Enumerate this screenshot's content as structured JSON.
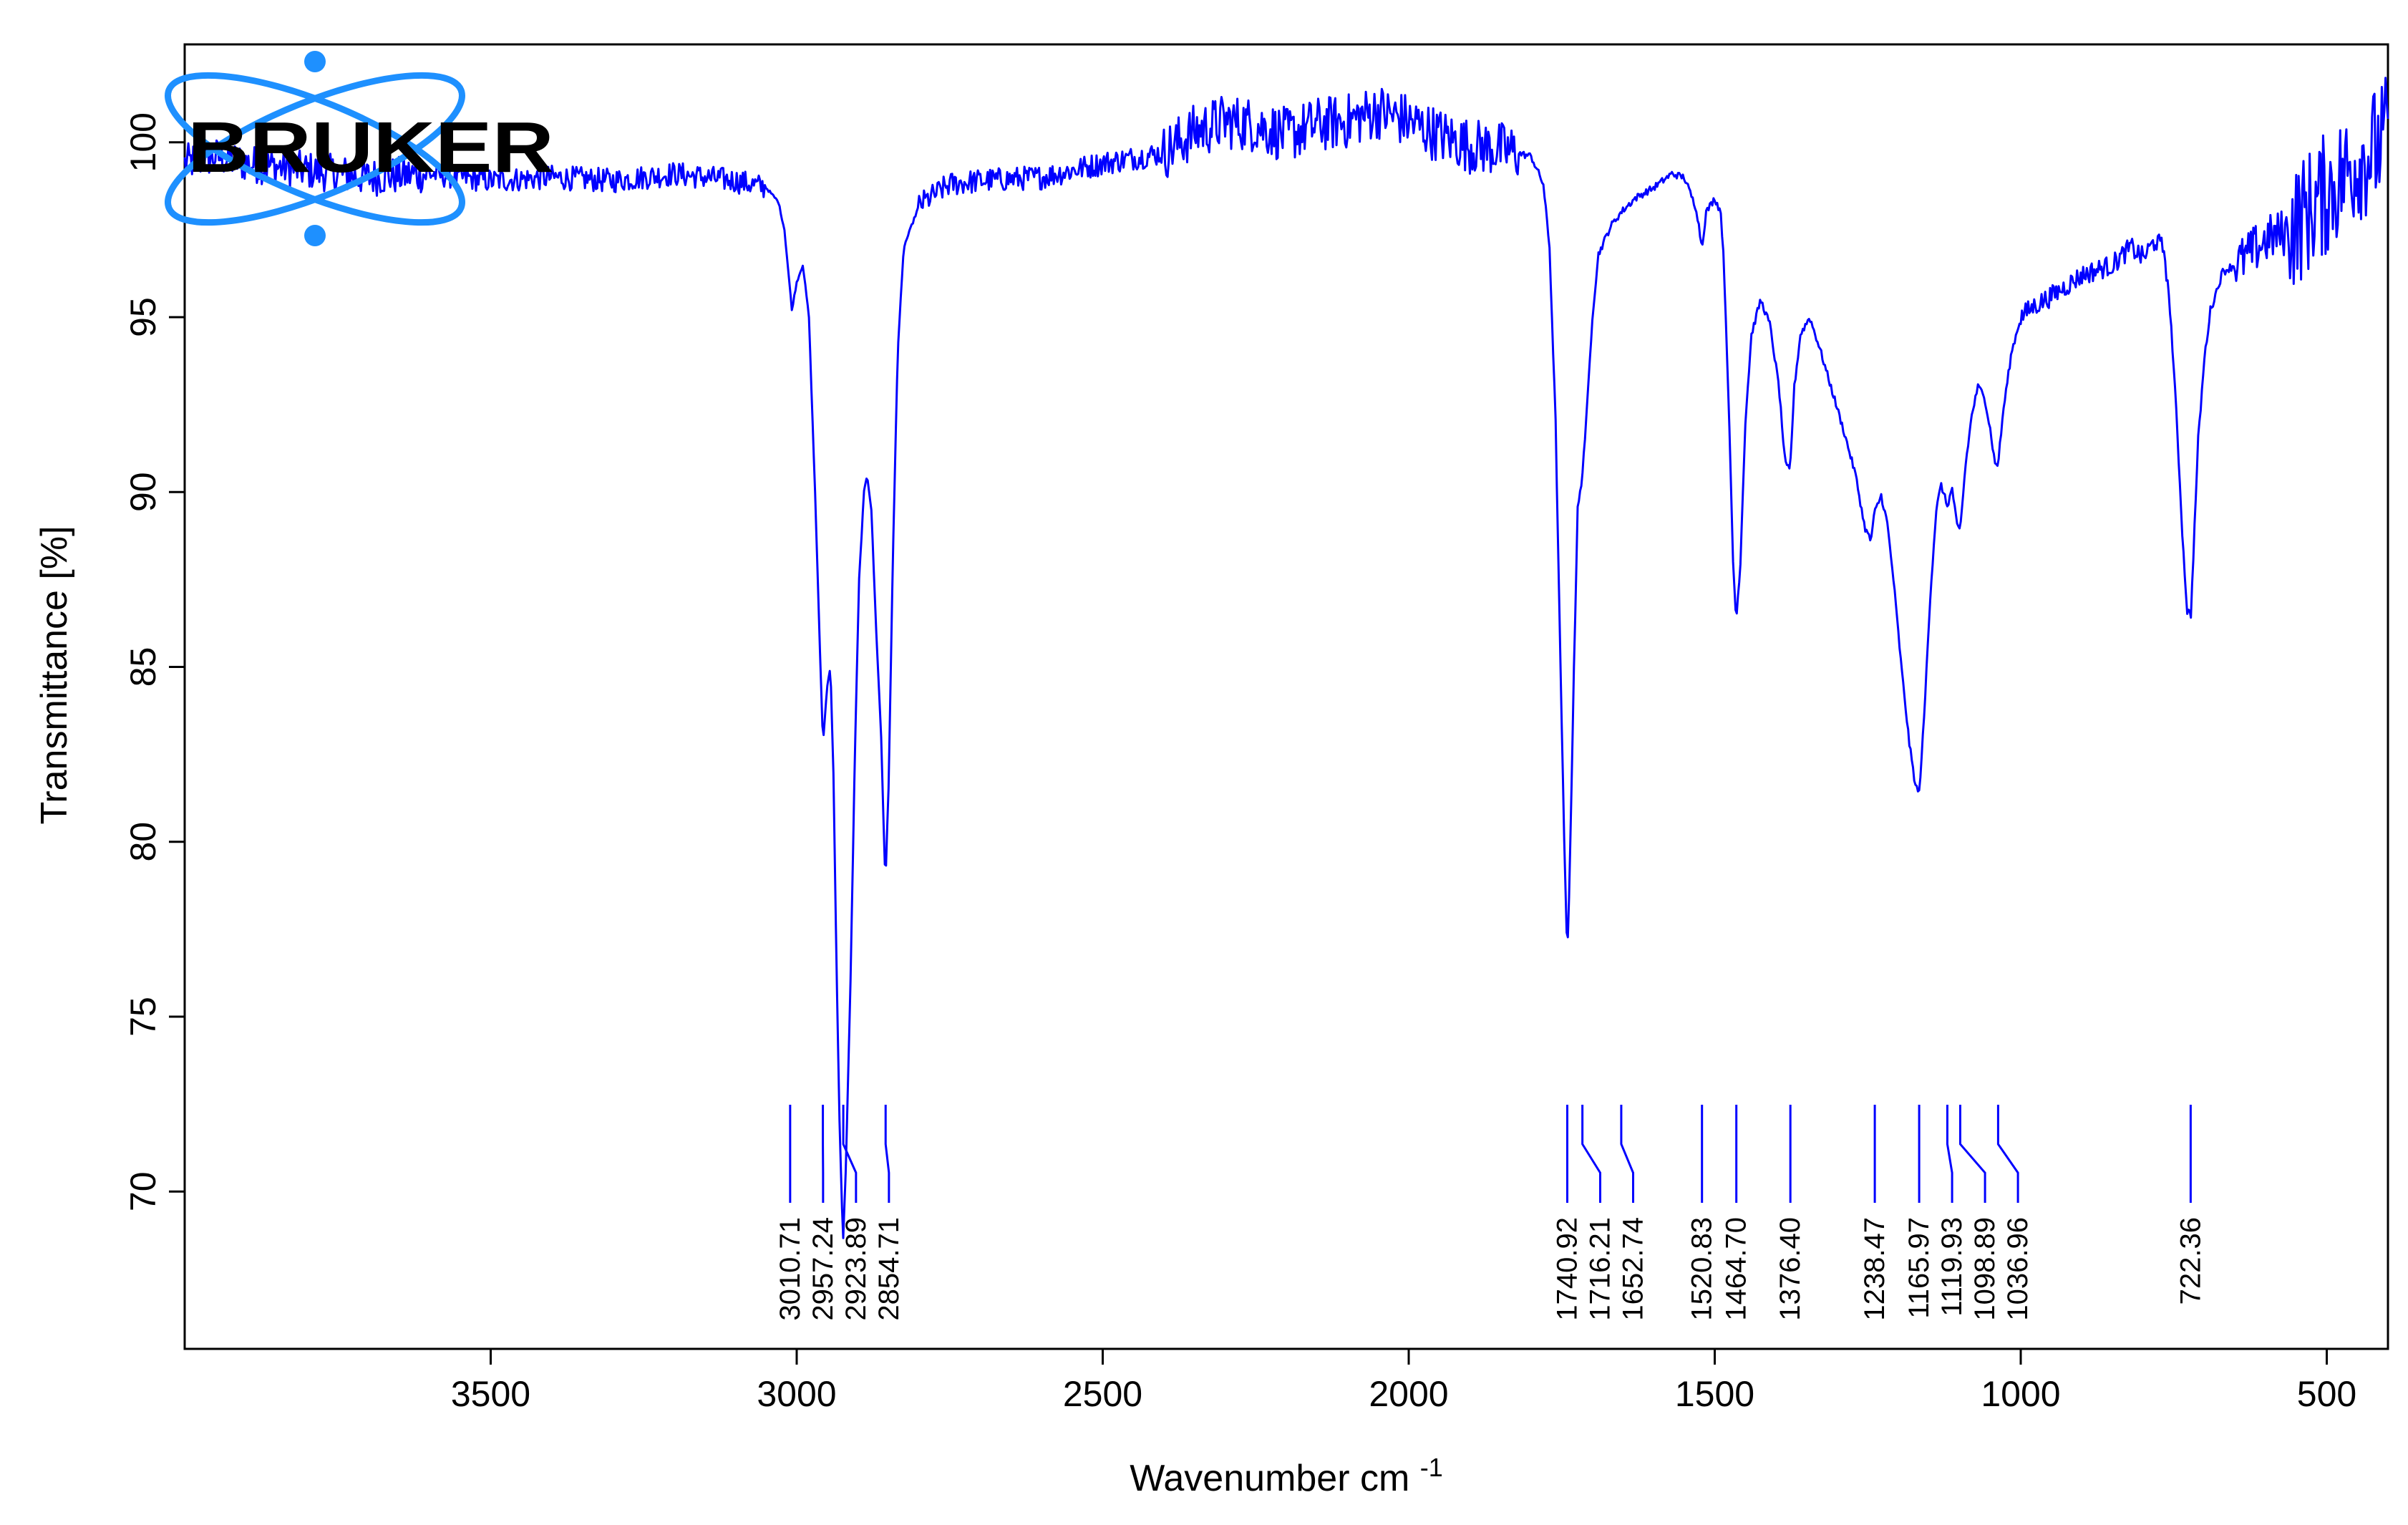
{
  "chart_data": {
    "type": "line",
    "xlabel": "Wavenumber cm",
    "xlabel_superscript": "-1",
    "ylabel": "Transmittance [%]",
    "xlim": [
      4000,
      400
    ],
    "ylim": [
      65.5,
      102.8
    ],
    "x_reversed": true,
    "x_ticks": [
      3500,
      3000,
      2500,
      2000,
      1500,
      1000,
      500
    ],
    "y_ticks": [
      70,
      75,
      80,
      85,
      90,
      95,
      100
    ],
    "grid": false,
    "series": [
      {
        "color": "#0000ff",
        "points": [
          [
            4000,
            99.4
          ],
          [
            3950,
            99.6
          ],
          [
            3900,
            99.4
          ],
          [
            3800,
            99.2
          ],
          [
            3700,
            99.0
          ],
          [
            3600,
            99.1
          ],
          [
            3500,
            98.9
          ],
          [
            3400,
            99.0
          ],
          [
            3300,
            98.9
          ],
          [
            3200,
            99.1
          ],
          [
            3100,
            98.9
          ],
          [
            3050,
            98.7
          ],
          [
            3030,
            98.3
          ],
          [
            3020,
            97.5
          ],
          [
            3012,
            96.0
          ],
          [
            3008,
            95.2
          ],
          [
            3000,
            96.0
          ],
          [
            2990,
            96.5
          ],
          [
            2980,
            95.0
          ],
          [
            2970,
            90.0
          ],
          [
            2963,
            86.0
          ],
          [
            2957,
            82.8
          ],
          [
            2950,
            84.5
          ],
          [
            2945,
            85.0
          ],
          [
            2940,
            82.0
          ],
          [
            2935,
            76.5
          ],
          [
            2930,
            72.0
          ],
          [
            2926,
            69.5
          ],
          [
            2924,
            68.7
          ],
          [
            2920,
            70.5
          ],
          [
            2912,
            76.0
          ],
          [
            2905,
            82.5
          ],
          [
            2898,
            87.5
          ],
          [
            2890,
            90.0
          ],
          [
            2885,
            90.5
          ],
          [
            2878,
            89.5
          ],
          [
            2870,
            86.0
          ],
          [
            2862,
            83.0
          ],
          [
            2858,
            80.5
          ],
          [
            2855,
            78.8
          ],
          [
            2850,
            81.5
          ],
          [
            2843,
            88.0
          ],
          [
            2835,
            94.0
          ],
          [
            2825,
            97.0
          ],
          [
            2800,
            98.2
          ],
          [
            2750,
            98.8
          ],
          [
            2700,
            98.9
          ],
          [
            2600,
            99.0
          ],
          [
            2500,
            99.4
          ],
          [
            2400,
            99.7
          ],
          [
            2350,
            100.3
          ],
          [
            2300,
            100.6
          ],
          [
            2250,
            100.5
          ],
          [
            2200,
            100.2
          ],
          [
            2150,
            100.5
          ],
          [
            2100,
            100.6
          ],
          [
            2050,
            100.9
          ],
          [
            2000,
            100.6
          ],
          [
            1950,
            100.2
          ],
          [
            1900,
            99.9
          ],
          [
            1850,
            99.8
          ],
          [
            1800,
            99.6
          ],
          [
            1780,
            98.8
          ],
          [
            1770,
            97.0
          ],
          [
            1760,
            92.0
          ],
          [
            1752,
            85.0
          ],
          [
            1746,
            80.0
          ],
          [
            1741,
            76.8
          ],
          [
            1737,
            79.0
          ],
          [
            1730,
            85.0
          ],
          [
            1724,
            89.5
          ],
          [
            1718,
            90.2
          ],
          [
            1710,
            92.0
          ],
          [
            1700,
            95.0
          ],
          [
            1690,
            96.8
          ],
          [
            1670,
            97.6
          ],
          [
            1653,
            98.0
          ],
          [
            1630,
            98.4
          ],
          [
            1600,
            98.7
          ],
          [
            1570,
            99.1
          ],
          [
            1550,
            99.0
          ],
          [
            1530,
            98.1
          ],
          [
            1521,
            97.0
          ],
          [
            1514,
            98.0
          ],
          [
            1500,
            98.4
          ],
          [
            1490,
            98.0
          ],
          [
            1485,
            96.5
          ],
          [
            1478,
            93.0
          ],
          [
            1470,
            88.0
          ],
          [
            1465,
            86.3
          ],
          [
            1458,
            88.0
          ],
          [
            1450,
            92.0
          ],
          [
            1440,
            94.5
          ],
          [
            1425,
            95.5
          ],
          [
            1410,
            94.8
          ],
          [
            1395,
            93.0
          ],
          [
            1385,
            90.8
          ],
          [
            1377,
            90.6
          ],
          [
            1370,
            93.0
          ],
          [
            1360,
            94.5
          ],
          [
            1345,
            95.0
          ],
          [
            1330,
            94.2
          ],
          [
            1310,
            93.0
          ],
          [
            1290,
            91.8
          ],
          [
            1270,
            90.5
          ],
          [
            1255,
            89.0
          ],
          [
            1245,
            88.6
          ],
          [
            1239,
            89.4
          ],
          [
            1228,
            89.9
          ],
          [
            1218,
            89.1
          ],
          [
            1208,
            87.5
          ],
          [
            1195,
            85.0
          ],
          [
            1182,
            82.8
          ],
          [
            1172,
            81.6
          ],
          [
            1166,
            81.4
          ],
          [
            1158,
            83.5
          ],
          [
            1148,
            87.0
          ],
          [
            1138,
            89.5
          ],
          [
            1130,
            90.2
          ],
          [
            1120,
            89.6
          ],
          [
            1112,
            90.1
          ],
          [
            1104,
            89.0
          ],
          [
            1099,
            88.9
          ],
          [
            1090,
            90.8
          ],
          [
            1080,
            92.2
          ],
          [
            1070,
            93.0
          ],
          [
            1060,
            92.8
          ],
          [
            1050,
            91.8
          ],
          [
            1042,
            90.8
          ],
          [
            1037,
            90.8
          ],
          [
            1028,
            92.4
          ],
          [
            1015,
            94.0
          ],
          [
            1000,
            95.0
          ],
          [
            980,
            95.3
          ],
          [
            950,
            95.6
          ],
          [
            900,
            96.2
          ],
          [
            850,
            96.5
          ],
          [
            820,
            97.0
          ],
          [
            800,
            96.7
          ],
          [
            780,
            97.2
          ],
          [
            765,
            96.9
          ],
          [
            755,
            95.0
          ],
          [
            745,
            92.0
          ],
          [
            735,
            88.5
          ],
          [
            728,
            86.6
          ],
          [
            722,
            86.5
          ],
          [
            716,
            89.0
          ],
          [
            710,
            91.5
          ],
          [
            700,
            93.8
          ],
          [
            690,
            95.2
          ],
          [
            670,
            96.3
          ],
          [
            640,
            96.6
          ],
          [
            600,
            97.2
          ],
          [
            560,
            97.5
          ],
          [
            520,
            98.2
          ],
          [
            480,
            98.9
          ],
          [
            450,
            99.5
          ],
          [
            420,
            99.8
          ],
          [
            400,
            100.2
          ]
        ]
      }
    ],
    "peak_labels": [
      "3010.71",
      "2957.24",
      "2923.89",
      "2854.71",
      "1740.92",
      "1716.21",
      "1652.74",
      "1520.83",
      "1464.70",
      "1376.40",
      "1238.47",
      "1165.97",
      "1119.93",
      "1098.89",
      "1036.96",
      "722.36"
    ],
    "peak_positions": [
      3010.71,
      2957.24,
      2923.89,
      2854.71,
      1740.92,
      1716.21,
      1652.74,
      1520.83,
      1464.7,
      1376.4,
      1238.47,
      1165.97,
      1119.93,
      1098.89,
      1036.96,
      722.36
    ]
  },
  "logo": {
    "text": "BRUKER",
    "color": "#1e90ff"
  }
}
